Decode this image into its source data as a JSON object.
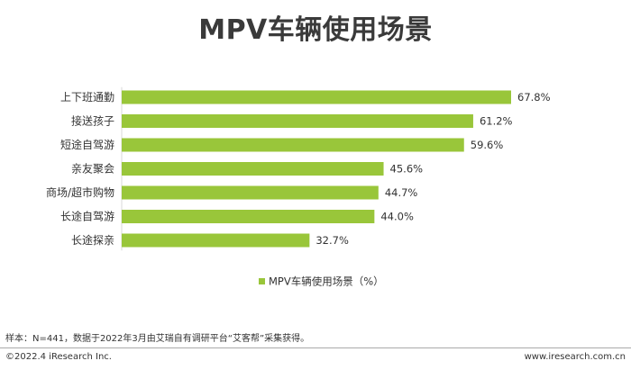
{
  "chart_data": {
    "type": "bar",
    "orientation": "horizontal",
    "title": "MPV车辆使用场景",
    "categories": [
      "上下班通勤",
      "接送孩子",
      "短途自驾游",
      "亲友聚会",
      "商场/超市购物",
      "长途自驾游",
      "长途探亲"
    ],
    "series": [
      {
        "name": "MPV车辆使用场景（%）",
        "values": [
          67.8,
          61.2,
          59.6,
          45.6,
          44.7,
          44.0,
          32.7
        ],
        "labels": [
          "67.8%",
          "61.2%",
          "59.6%",
          "45.6%",
          "44.7%",
          "44.0%",
          "32.7%"
        ],
        "color": "#99c63a"
      }
    ],
    "xlim": [
      0,
      70
    ],
    "grid": false,
    "legend_position": "bottom"
  },
  "footer": {
    "note": "样本：N=441，数据于2022年3月由艾瑞自有调研平台“艾客帮”采集获得。",
    "copyright": "©2022.4 iResearch Inc.",
    "url": "www.iresearch.com.cn"
  }
}
